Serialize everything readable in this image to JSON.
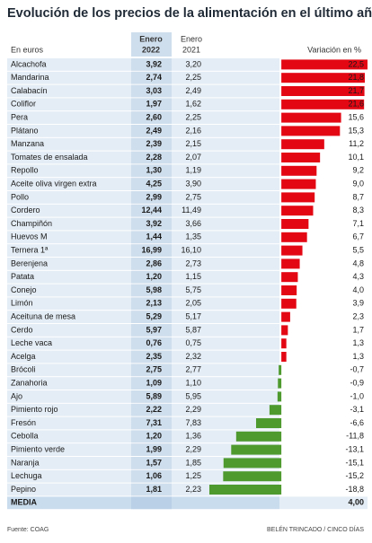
{
  "chart_data": {
    "type": "bar",
    "title": "Evolución de los precios de la alimentación en el último año",
    "unit_label": "En euros",
    "col_2022": [
      "Enero",
      "2022"
    ],
    "col_2021": [
      "Enero",
      "2021"
    ],
    "variation_label": "Variación en %",
    "categories": [
      "Alcachofa",
      "Mandarina",
      "Calabacín",
      "Coliflor",
      "Pera",
      "Plátano",
      "Manzana",
      "Tomates de ensalada",
      "Repollo",
      "Aceite oliva virgen extra",
      "Pollo",
      "Cordero",
      "Champiñón",
      "Huevos M",
      "Ternera 1ª",
      "Berenjena",
      "Patata",
      "Conejo",
      "Limón",
      "Aceituna de mesa",
      "Cerdo",
      "Leche vaca",
      "Acelga",
      "Brócoli",
      "Zanahoria",
      "Ajo",
      "Pimiento rojo",
      "Fresón",
      "Cebolla",
      "Pimiento verde",
      "Naranja",
      "Lechuga",
      "Pepino"
    ],
    "price_2022": [
      "3,92",
      "2,74",
      "3,03",
      "1,97",
      "2,60",
      "2,49",
      "2,39",
      "2,28",
      "1,30",
      "4,25",
      "2,99",
      "12,44",
      "3,92",
      "1,44",
      "16,99",
      "2,86",
      "1,20",
      "5,98",
      "2,13",
      "5,29",
      "5,97",
      "0,76",
      "2,35",
      "2,75",
      "1,09",
      "5,89",
      "2,22",
      "7,31",
      "1,20",
      "1,99",
      "1,57",
      "1,06",
      "1,81"
    ],
    "price_2021": [
      "3,20",
      "2,25",
      "2,49",
      "1,62",
      "2,25",
      "2,16",
      "2,15",
      "2,07",
      "1,19",
      "3,90",
      "2,75",
      "11,49",
      "3,66",
      "1,35",
      "16,10",
      "2,73",
      "1,15",
      "5,75",
      "2,05",
      "5,17",
      "5,87",
      "0,75",
      "2,32",
      "2,77",
      "1,10",
      "5,95",
      "2,29",
      "7,83",
      "1,36",
      "2,29",
      "1,85",
      "1,25",
      "2,23"
    ],
    "values": [
      22.5,
      21.8,
      21.7,
      21.6,
      15.6,
      15.3,
      11.2,
      10.1,
      9.2,
      9.0,
      8.7,
      8.3,
      7.1,
      6.7,
      5.5,
      4.8,
      4.3,
      4.0,
      3.9,
      2.3,
      1.7,
      1.3,
      1.3,
      -0.7,
      -0.9,
      -1.0,
      -3.1,
      -6.6,
      -11.8,
      -13.1,
      -15.1,
      -15.2,
      -18.8
    ],
    "value_labels": [
      "22,5",
      "21,8",
      "21,7",
      "21,6",
      "15,6",
      "15,3",
      "11,2",
      "10,1",
      "9,2",
      "9,0",
      "8,7",
      "8,3",
      "7,1",
      "6,7",
      "5,5",
      "4,8",
      "4,3",
      "4,0",
      "3,9",
      "2,3",
      "1,7",
      "1,3",
      "1,3",
      "-0,7",
      "-0,9",
      "-1,0",
      "-3,1",
      "-6,6",
      "-11,8",
      "-13,1",
      "-15,1",
      "-15,2",
      "-18,8"
    ],
    "mean_label": "MEDIA",
    "mean_value": "4,00",
    "positive_color": "#e30613",
    "negative_color": "#4e9a2e",
    "source": "Fuente: COAG",
    "credit": "BELÉN TRINCADO / CINCO DÍAS"
  }
}
